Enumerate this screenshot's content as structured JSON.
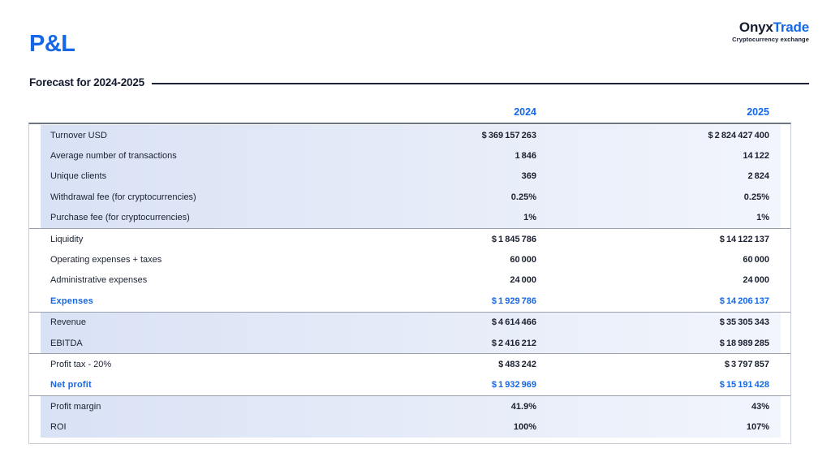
{
  "page": {
    "title": "P&L",
    "heading": "Forecast for 2024-2025"
  },
  "logo": {
    "name_primary": "Onyx",
    "name_secondary": "Trade",
    "tagline": "Cryptocurrency exchange"
  },
  "colors": {
    "accent_blue": "#1567e8",
    "dark_navy": "#141b2e",
    "row_tint_left": "#d9e2f5",
    "row_tint_right": "#f2f5fc"
  },
  "table": {
    "columns": [
      "2024",
      "2025"
    ],
    "blocks": [
      {
        "tinted": true,
        "rows": [
          {
            "label": "Turnover USD",
            "v2024": "$ 369 157 263",
            "v2025": "$ 2 824 427 400"
          },
          {
            "label": "Average number of transactions",
            "v2024": "1 846",
            "v2025": "14 122"
          },
          {
            "label": "Unique clients",
            "v2024": "369",
            "v2025": "2 824"
          },
          {
            "label": "Withdrawal fee (for cryptocurrencies)",
            "v2024": "0.25%",
            "v2025": "0.25%"
          },
          {
            "label": "Purchase fee (for cryptocurrencies)",
            "v2024": "1%",
            "v2025": "1%"
          }
        ]
      },
      {
        "tinted": false,
        "rows": [
          {
            "label": "Liquidity",
            "v2024": "$ 1 845 786",
            "v2025": "$ 14 122 137"
          },
          {
            "label": "Operating expenses + taxes",
            "v2024": "60 000",
            "v2025": "60 000"
          },
          {
            "label": "Administrative expenses",
            "v2024": "24 000",
            "v2025": "24 000"
          },
          {
            "label": "Expenses",
            "v2024": "$ 1 929 786",
            "v2025": "$ 14 206 137",
            "emphasis": true
          }
        ]
      },
      {
        "tinted": true,
        "rows": [
          {
            "label": "Revenue",
            "v2024": "$ 4 614 466",
            "v2025": "$ 35 305 343"
          },
          {
            "label": "EBITDA",
            "v2024": "$ 2 416 212",
            "v2025": "$ 18 989 285"
          }
        ]
      },
      {
        "tinted": false,
        "rows": [
          {
            "label": "Profit tax - 20%",
            "v2024": "$ 483 242",
            "v2025": "$ 3 797 857"
          },
          {
            "label": "Net profit",
            "v2024": "$ 1 932 969",
            "v2025": "$ 15 191 428",
            "emphasis": true
          }
        ]
      },
      {
        "tinted": true,
        "rows": [
          {
            "label": "Profit margin",
            "v2024": "41.9%",
            "v2025": "43%"
          },
          {
            "label": "ROI",
            "v2024": "100%",
            "v2025": "107%"
          }
        ]
      }
    ]
  }
}
